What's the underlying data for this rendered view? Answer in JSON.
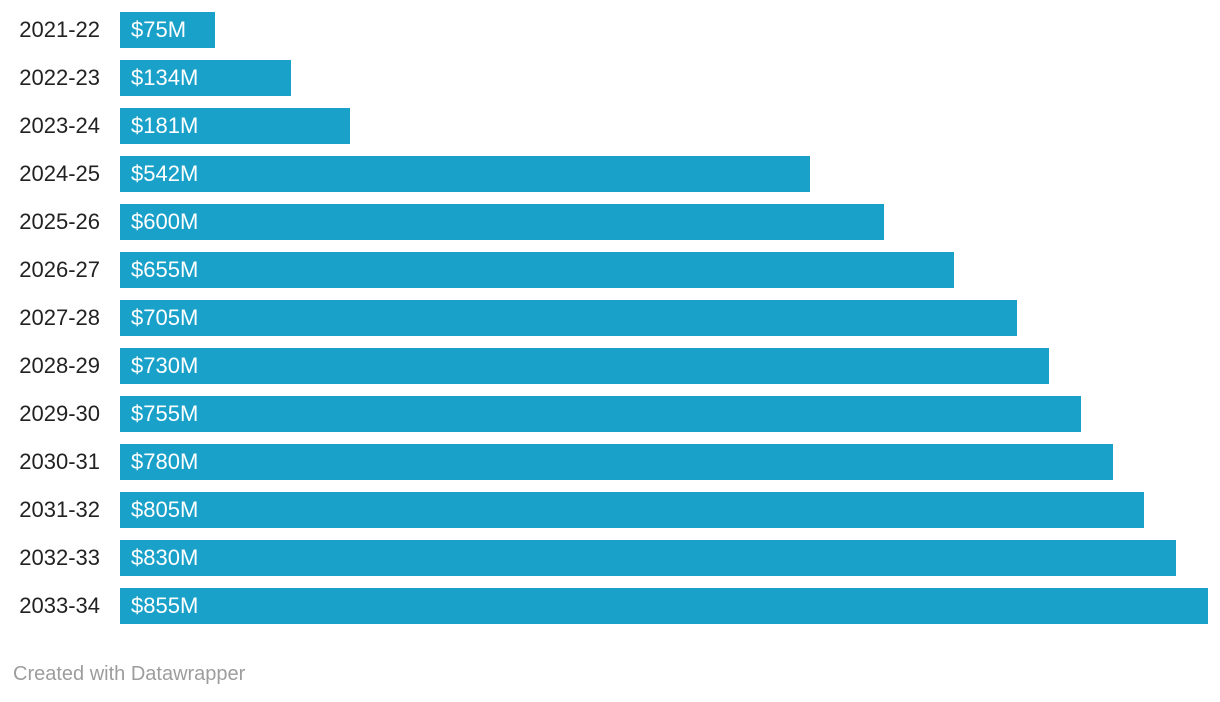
{
  "chart_data": {
    "type": "bar",
    "orientation": "horizontal",
    "categories": [
      "2021-22",
      "2022-23",
      "2023-24",
      "2024-25",
      "2025-26",
      "2026-27",
      "2027-28",
      "2028-29",
      "2029-30",
      "2030-31",
      "2031-32",
      "2032-33",
      "2033-34"
    ],
    "values": [
      75,
      134,
      181,
      542,
      600,
      655,
      705,
      730,
      755,
      780,
      805,
      830,
      855
    ],
    "value_labels": [
      "$75M",
      "$134M",
      "$181M",
      "$542M",
      "$600M",
      "$655M",
      "$705M",
      "$730M",
      "$755M",
      "$780M",
      "$805M",
      "$830M",
      "$855M"
    ],
    "title": "",
    "xlabel": "",
    "ylabel": "",
    "xlim": [
      0,
      855
    ],
    "grid": false,
    "legend": "none",
    "bar_color": "#1AA1CA",
    "value_label_color": "#ffffff",
    "category_label_color": "#222222"
  },
  "footer": {
    "credit": "Created with Datawrapper"
  }
}
